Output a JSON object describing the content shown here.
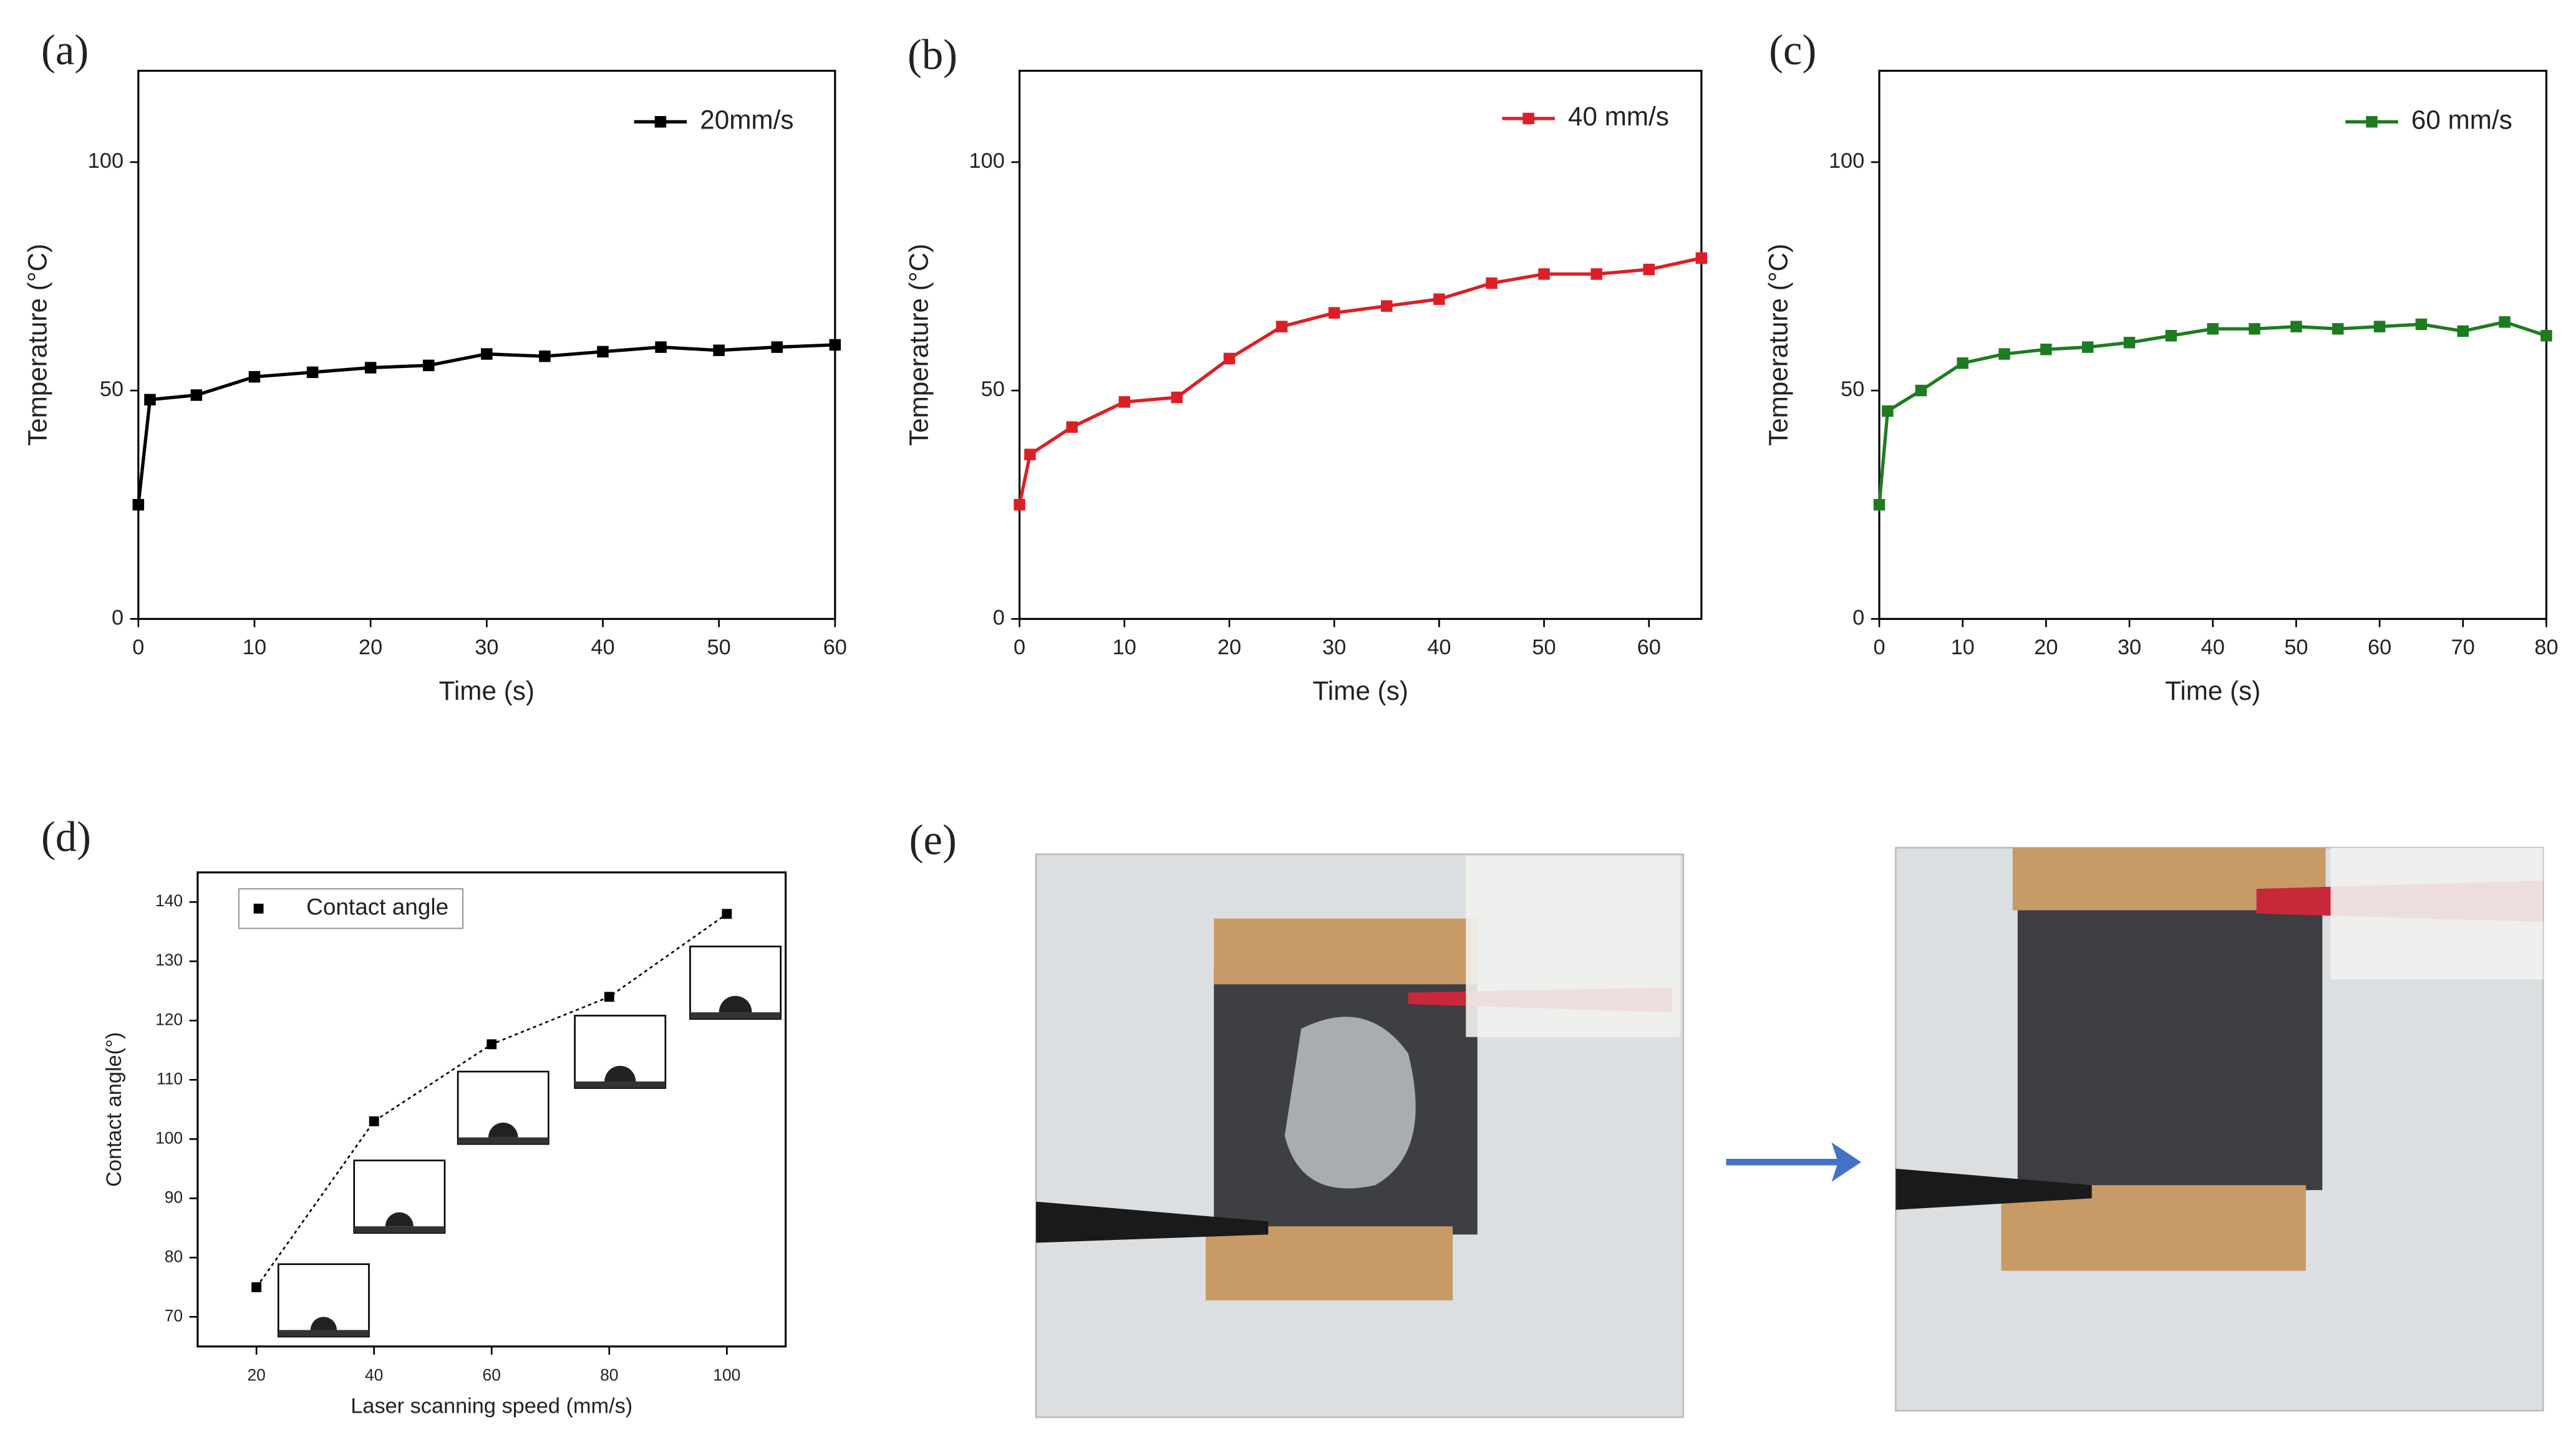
{
  "chart_data": [
    {
      "type": "line",
      "panel": "(a)",
      "x_label": "Time (s)",
      "y_label": "Temperature (°C)",
      "x": [
        0,
        1,
        5,
        10,
        15,
        20,
        25,
        30,
        35,
        40,
        45,
        50,
        55,
        60
      ],
      "series": [
        {
          "name": "20mm/s",
          "color": "#000000",
          "values": [
            25,
            48,
            49,
            53,
            54,
            55,
            55.5,
            58,
            57.5,
            58.5,
            59.5,
            58.8,
            59.5,
            60
          ]
        }
      ],
      "xlim": [
        0,
        60
      ],
      "ylim": [
        0,
        120
      ],
      "xticks": [
        0,
        10,
        20,
        30,
        40,
        50,
        60
      ],
      "yticks": [
        0,
        50,
        100
      ],
      "legend": "upper right"
    },
    {
      "type": "line",
      "panel": "(b)",
      "x_label": "Time (s)",
      "y_label": "Temperature (°C)",
      "x": [
        0,
        1,
        5,
        10,
        15,
        20,
        25,
        30,
        35,
        40,
        45,
        50,
        55,
        60,
        65
      ],
      "series": [
        {
          "name": "40 mm/s",
          "color": "#dc1f26",
          "values": [
            25,
            36,
            42,
            47.5,
            48.5,
            57,
            64,
            67,
            68.5,
            70,
            73.5,
            75.5,
            75.5,
            76.5,
            79
          ]
        }
      ],
      "xlim": [
        0,
        65
      ],
      "ylim": [
        0,
        120
      ],
      "xticks": [
        0,
        10,
        20,
        30,
        40,
        50,
        60
      ],
      "yticks": [
        0,
        50,
        100
      ],
      "legend": "upper right"
    },
    {
      "type": "line",
      "panel": "(c)",
      "x_label": "Time (s)",
      "y_label": "Temperature (°C)",
      "x": [
        0,
        1,
        5,
        10,
        15,
        20,
        25,
        30,
        35,
        40,
        45,
        50,
        55,
        60,
        65,
        70,
        75,
        80
      ],
      "series": [
        {
          "name": "60 mm/s",
          "color": "#1e7b22",
          "values": [
            25,
            45.5,
            50,
            56,
            58,
            59,
            59.5,
            60.5,
            62,
            63.5,
            63.5,
            64,
            63.5,
            64,
            64.5,
            63,
            65,
            62
          ]
        }
      ],
      "xlim": [
        0,
        80
      ],
      "ylim": [
        0,
        120
      ],
      "xticks": [
        0,
        10,
        20,
        30,
        40,
        50,
        60,
        70,
        80
      ],
      "yticks": [
        0,
        50,
        100
      ],
      "legend": "upper right"
    },
    {
      "type": "scatter",
      "panel": "(d)",
      "x_label": "Laser scanning speed (mm/s)",
      "y_label": "Contact angle(°)",
      "x": [
        20,
        40,
        60,
        80,
        100
      ],
      "series": [
        {
          "name": "Contact angle",
          "color": "#000000",
          "values": [
            75,
            103,
            116,
            124,
            138
          ]
        }
      ],
      "xlim": [
        10,
        110
      ],
      "ylim": [
        65,
        145
      ],
      "xticks": [
        20,
        40,
        60,
        80,
        100
      ],
      "yticks": [
        70,
        80,
        90,
        100,
        110,
        120,
        130,
        140
      ],
      "legend": "upper left"
    }
  ],
  "photo_panel": {
    "label": "(e)"
  }
}
